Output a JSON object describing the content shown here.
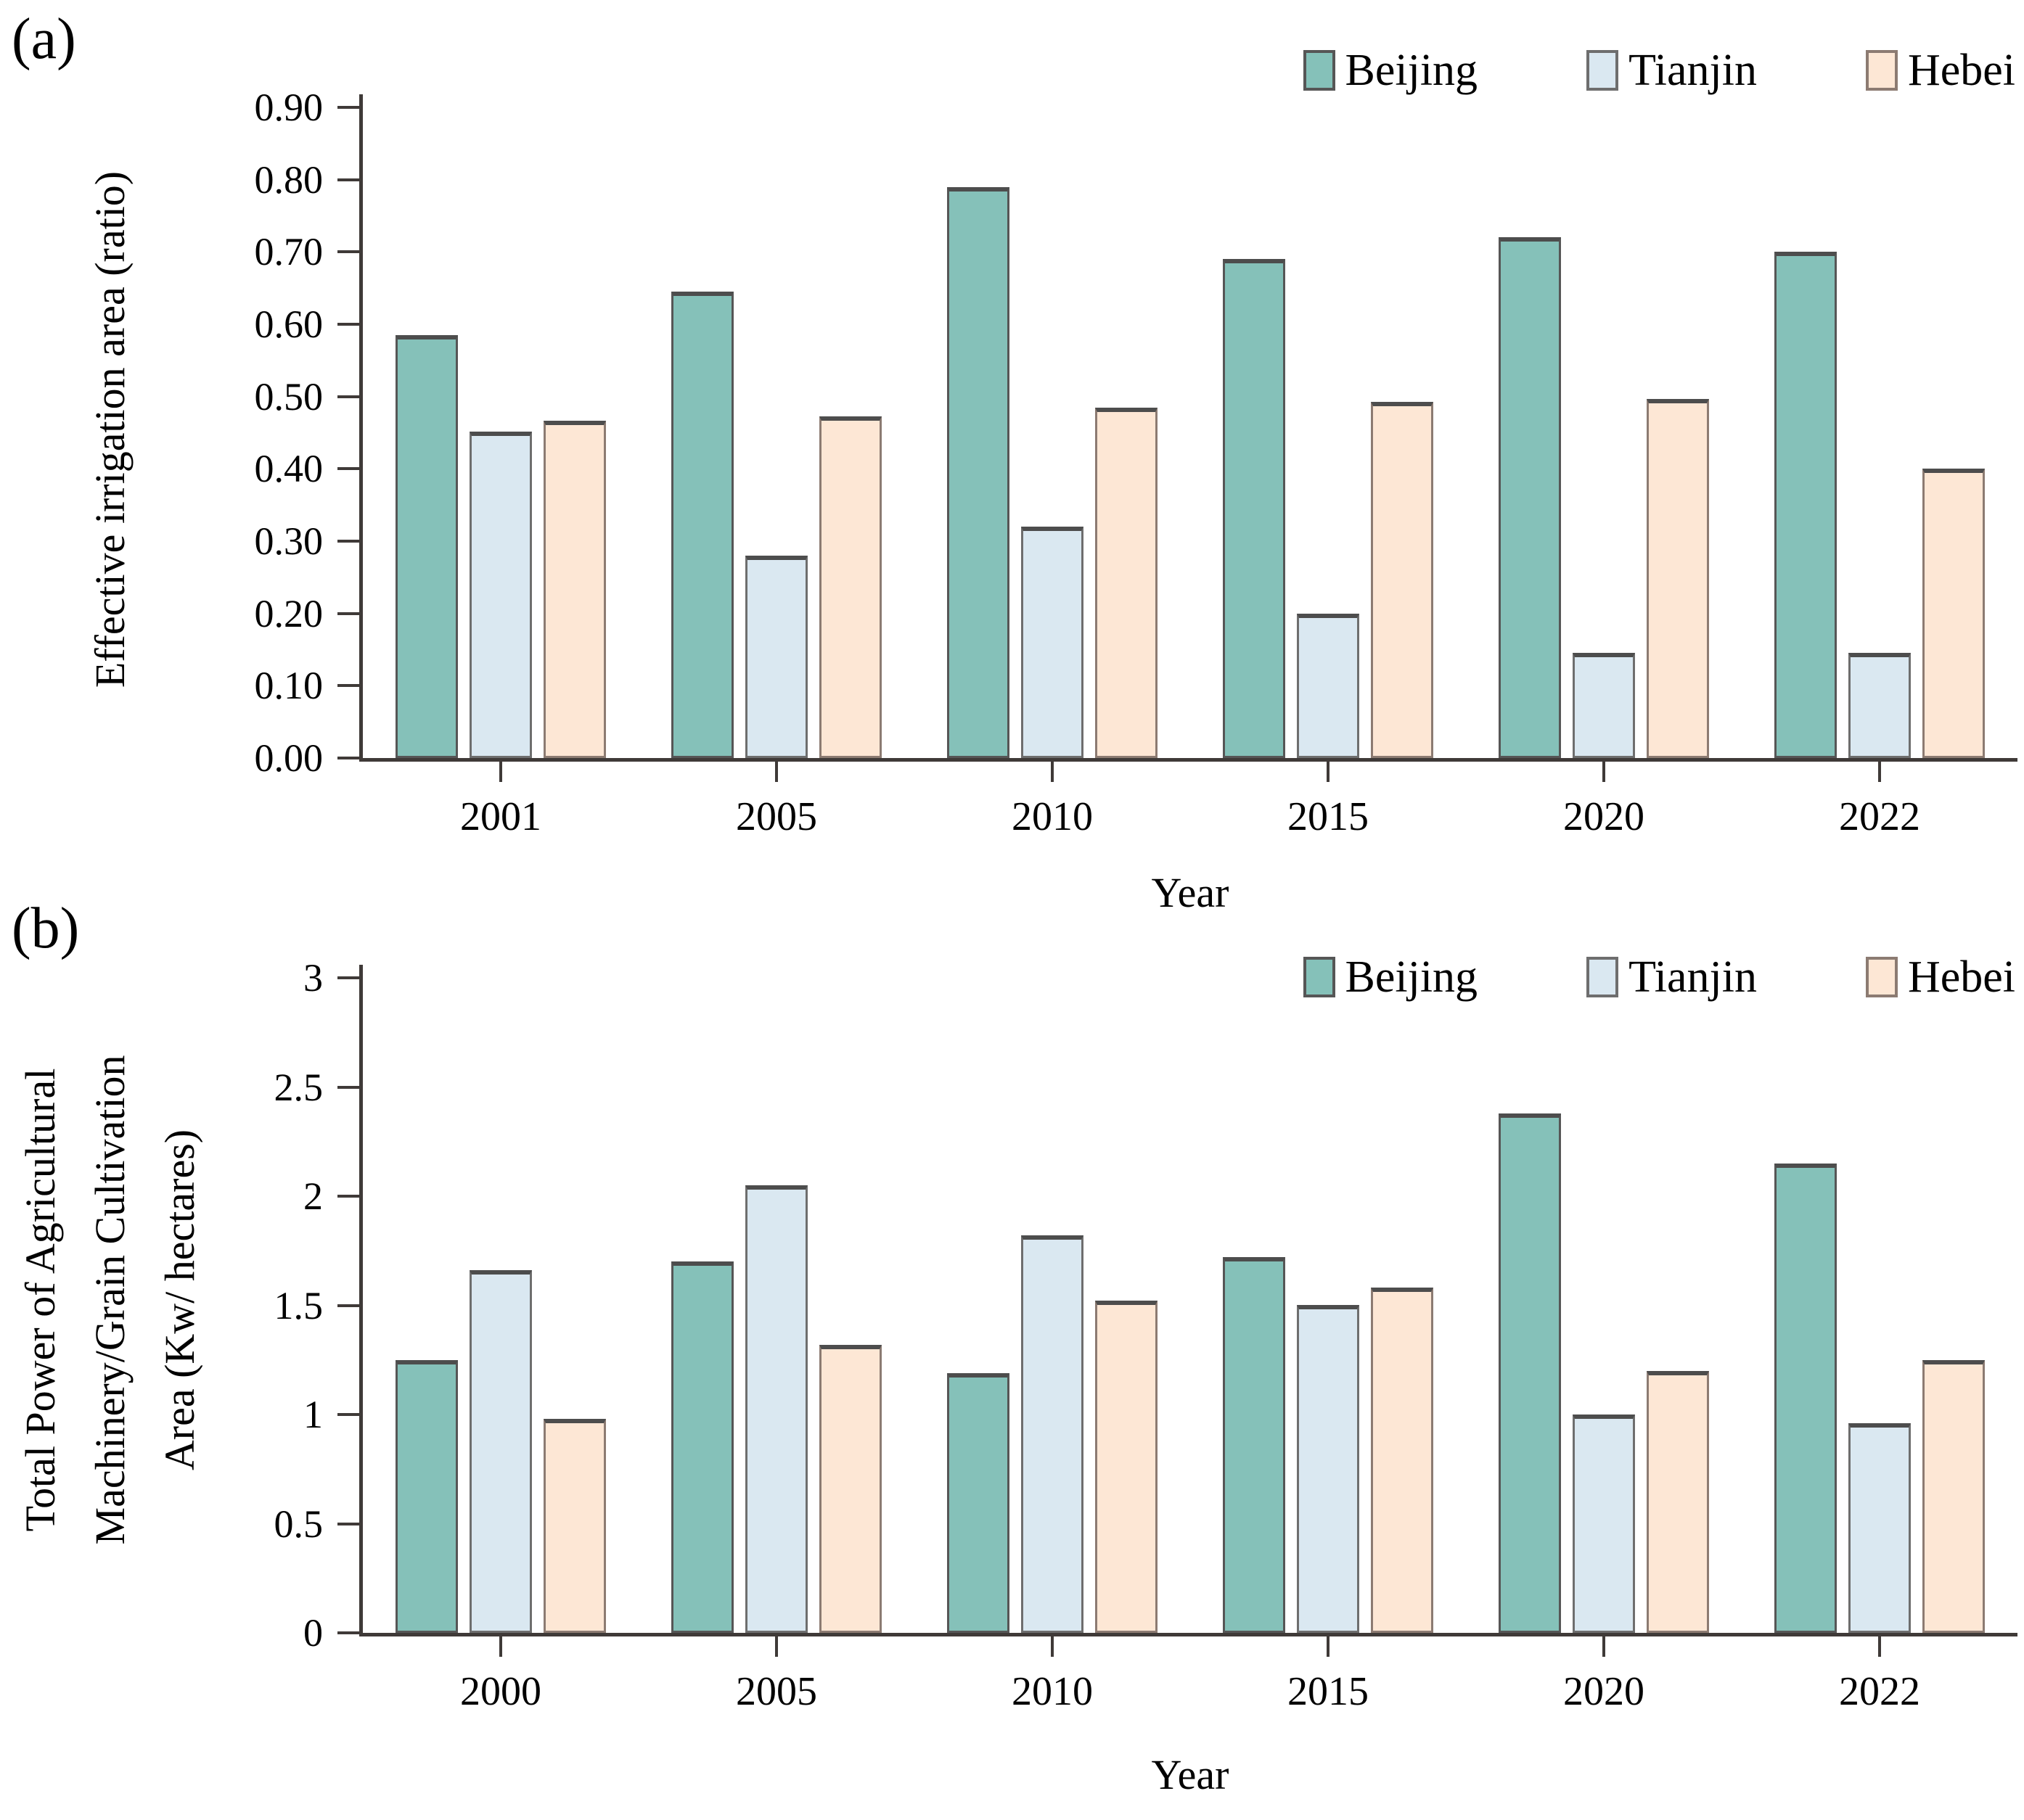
{
  "figure_title": "",
  "legend": {
    "items": [
      "Beijing",
      "Tianjin",
      "Hebei"
    ]
  },
  "colors": {
    "beijing_fill": "#85C1B9",
    "beijing_stroke": "#565656",
    "tianjin_fill": "#DAE8F1",
    "tianjin_stroke": "#6E6E6E",
    "hebei_fill": "#FDE7D5",
    "hebei_stroke": "#8C7B72",
    "bar_top_cap": "#4D4D4D",
    "axis": "#3F3A38",
    "text": "#000000"
  },
  "chart_data": [
    {
      "type": "bar",
      "panel_label": "(a)",
      "title": "",
      "ylabel": "Effective irrigation area (ratio)",
      "ylabel_lines": [
        "Effective irrigation area (ratio)"
      ],
      "xlabel": "Year",
      "categories": [
        "2001",
        "2005",
        "2010",
        "2015",
        "2020",
        "2022"
      ],
      "ylim": [
        0,
        0.9
      ],
      "ytick_step": 0.1,
      "ytick_labels": [
        "0.00",
        "0.10",
        "0.20",
        "0.30",
        "0.40",
        "0.50",
        "0.60",
        "0.70",
        "0.80",
        "0.90"
      ],
      "grid": false,
      "legend_position": "top-right",
      "series": [
        {
          "name": "Beijing",
          "values": [
            0.585,
            0.645,
            0.79,
            0.69,
            0.72,
            0.7
          ]
        },
        {
          "name": "Tianjin",
          "values": [
            0.452,
            0.28,
            0.32,
            0.2,
            0.145,
            0.145
          ]
        },
        {
          "name": "Hebei",
          "values": [
            0.467,
            0.473,
            0.485,
            0.493,
            0.497,
            0.4
          ]
        }
      ]
    },
    {
      "type": "bar",
      "panel_label": "(b)",
      "title": "",
      "ylabel": "Total Power of Agricultural Machinery/Grain Cultivation Area (Kw/ hectares)",
      "ylabel_lines": [
        "Total Power of Agricultural",
        "Machinery/Grain Cultivation",
        "Area (Kw/ hectares)"
      ],
      "xlabel": "Year",
      "categories": [
        "2000",
        "2005",
        "2010",
        "2015",
        "2020",
        "2022"
      ],
      "ylim": [
        0,
        3
      ],
      "ytick_step": 0.5,
      "ytick_labels": [
        "0",
        "0.5",
        "1",
        "1.5",
        "2",
        "2.5",
        "3"
      ],
      "grid": false,
      "legend_position": "top-right",
      "series": [
        {
          "name": "Beijing",
          "values": [
            1.25,
            1.7,
            1.19,
            1.72,
            2.38,
            2.15
          ]
        },
        {
          "name": "Tianjin",
          "values": [
            1.66,
            2.05,
            1.82,
            1.5,
            1.0,
            0.96
          ]
        },
        {
          "name": "Hebei",
          "values": [
            0.98,
            1.32,
            1.52,
            1.58,
            1.2,
            1.25
          ]
        }
      ]
    }
  ]
}
